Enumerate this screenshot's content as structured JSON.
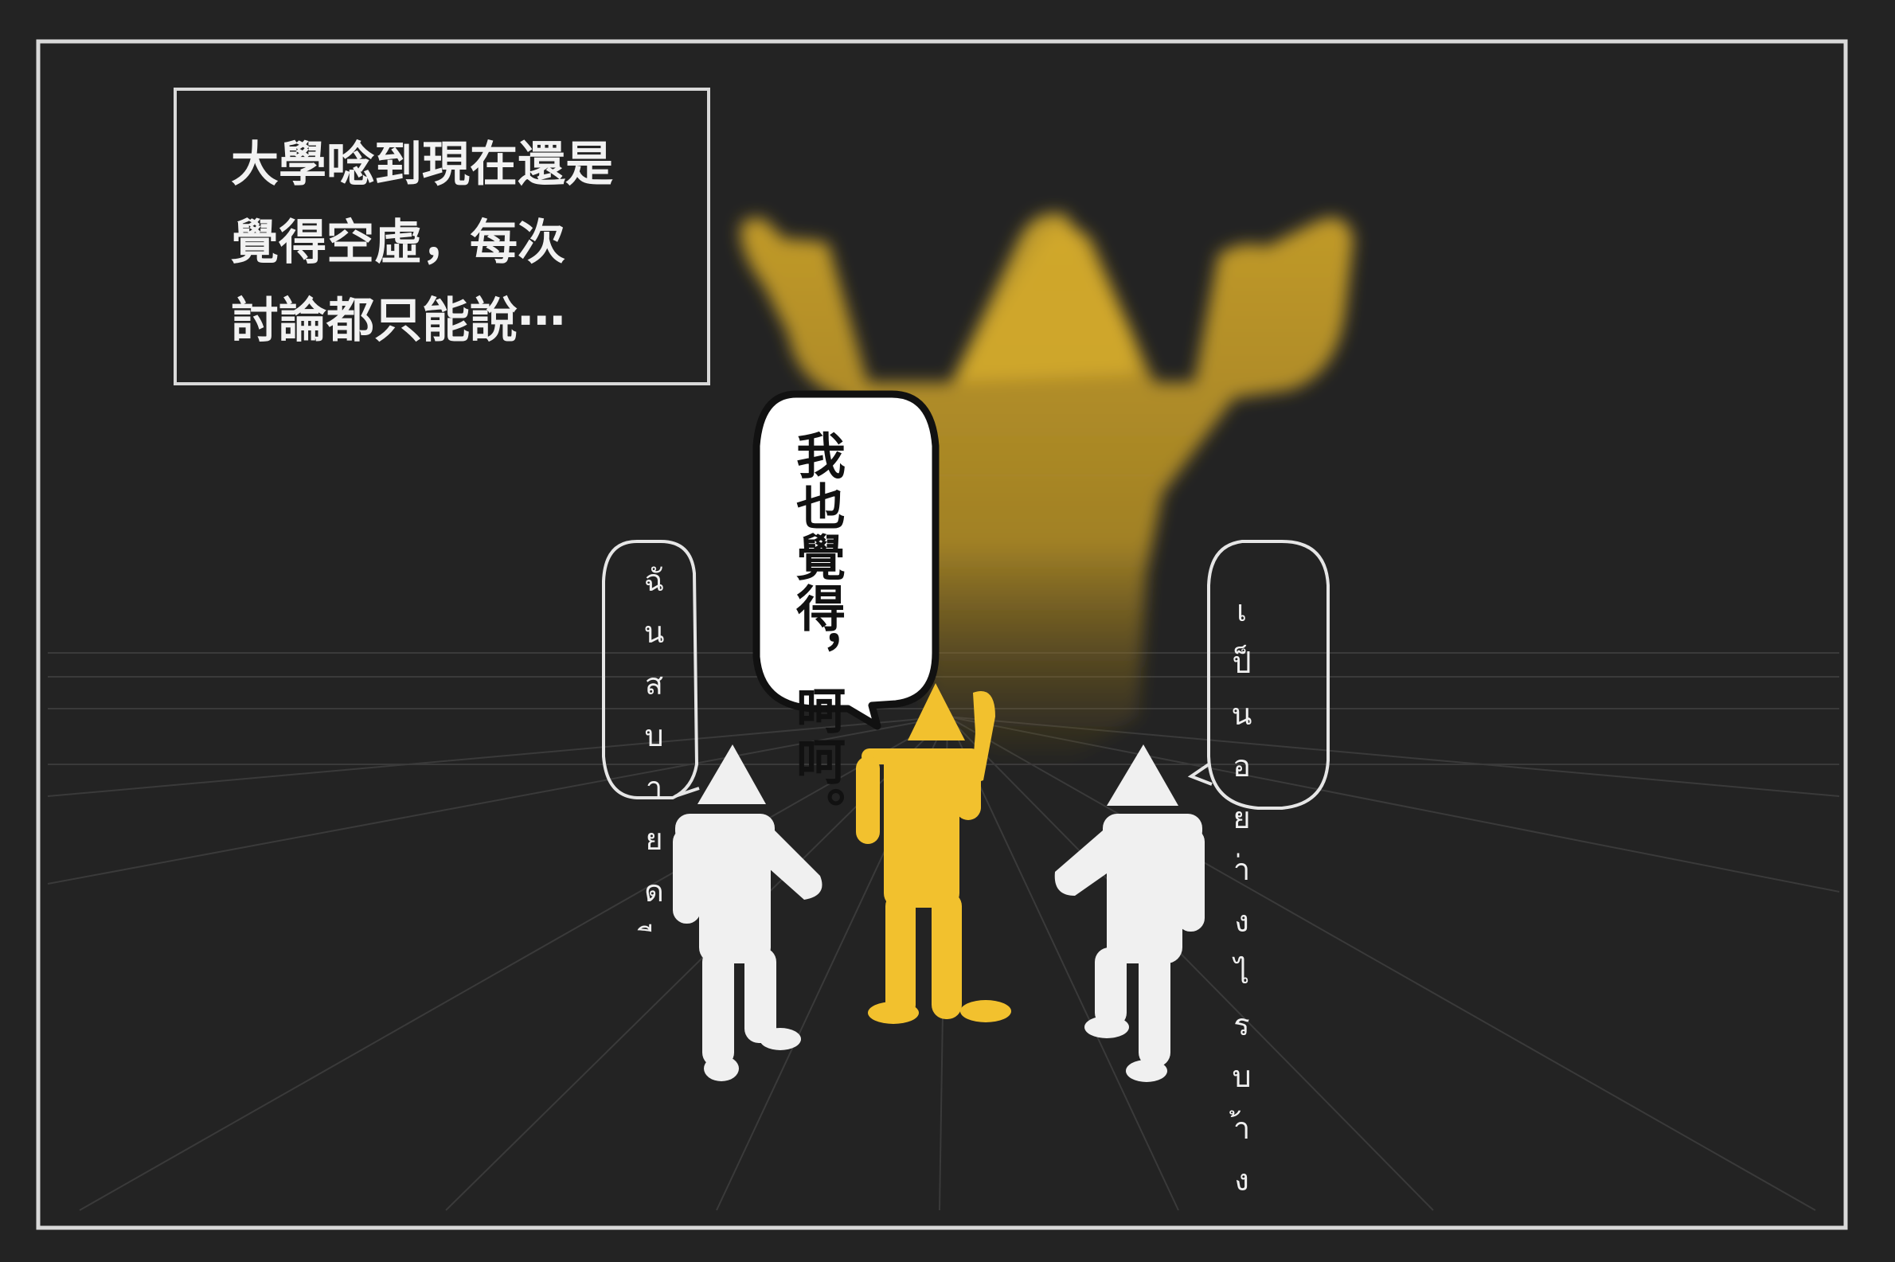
{
  "caption": {
    "lines": [
      "大學唸到現在還是",
      "覺得空虛，每次",
      "討論都只能說⋯"
    ]
  },
  "speech_center": {
    "lines": [
      "我也覺得，",
      "呵呵。"
    ]
  },
  "speech_left": {
    "lines": [
      "ฉันสบายดี"
    ]
  },
  "speech_right": {
    "lines": [
      "เป็นอย่างไรบ้าง"
    ]
  },
  "colors": {
    "background": "#232323",
    "frame": "#d9d9d9",
    "yellow_figure": "#f2c12e",
    "shadow_figure": "#c9a02a",
    "white_figure": "#f0f0f0",
    "bubble_fill": "#ffffff",
    "bubble_outline": "#111111"
  }
}
